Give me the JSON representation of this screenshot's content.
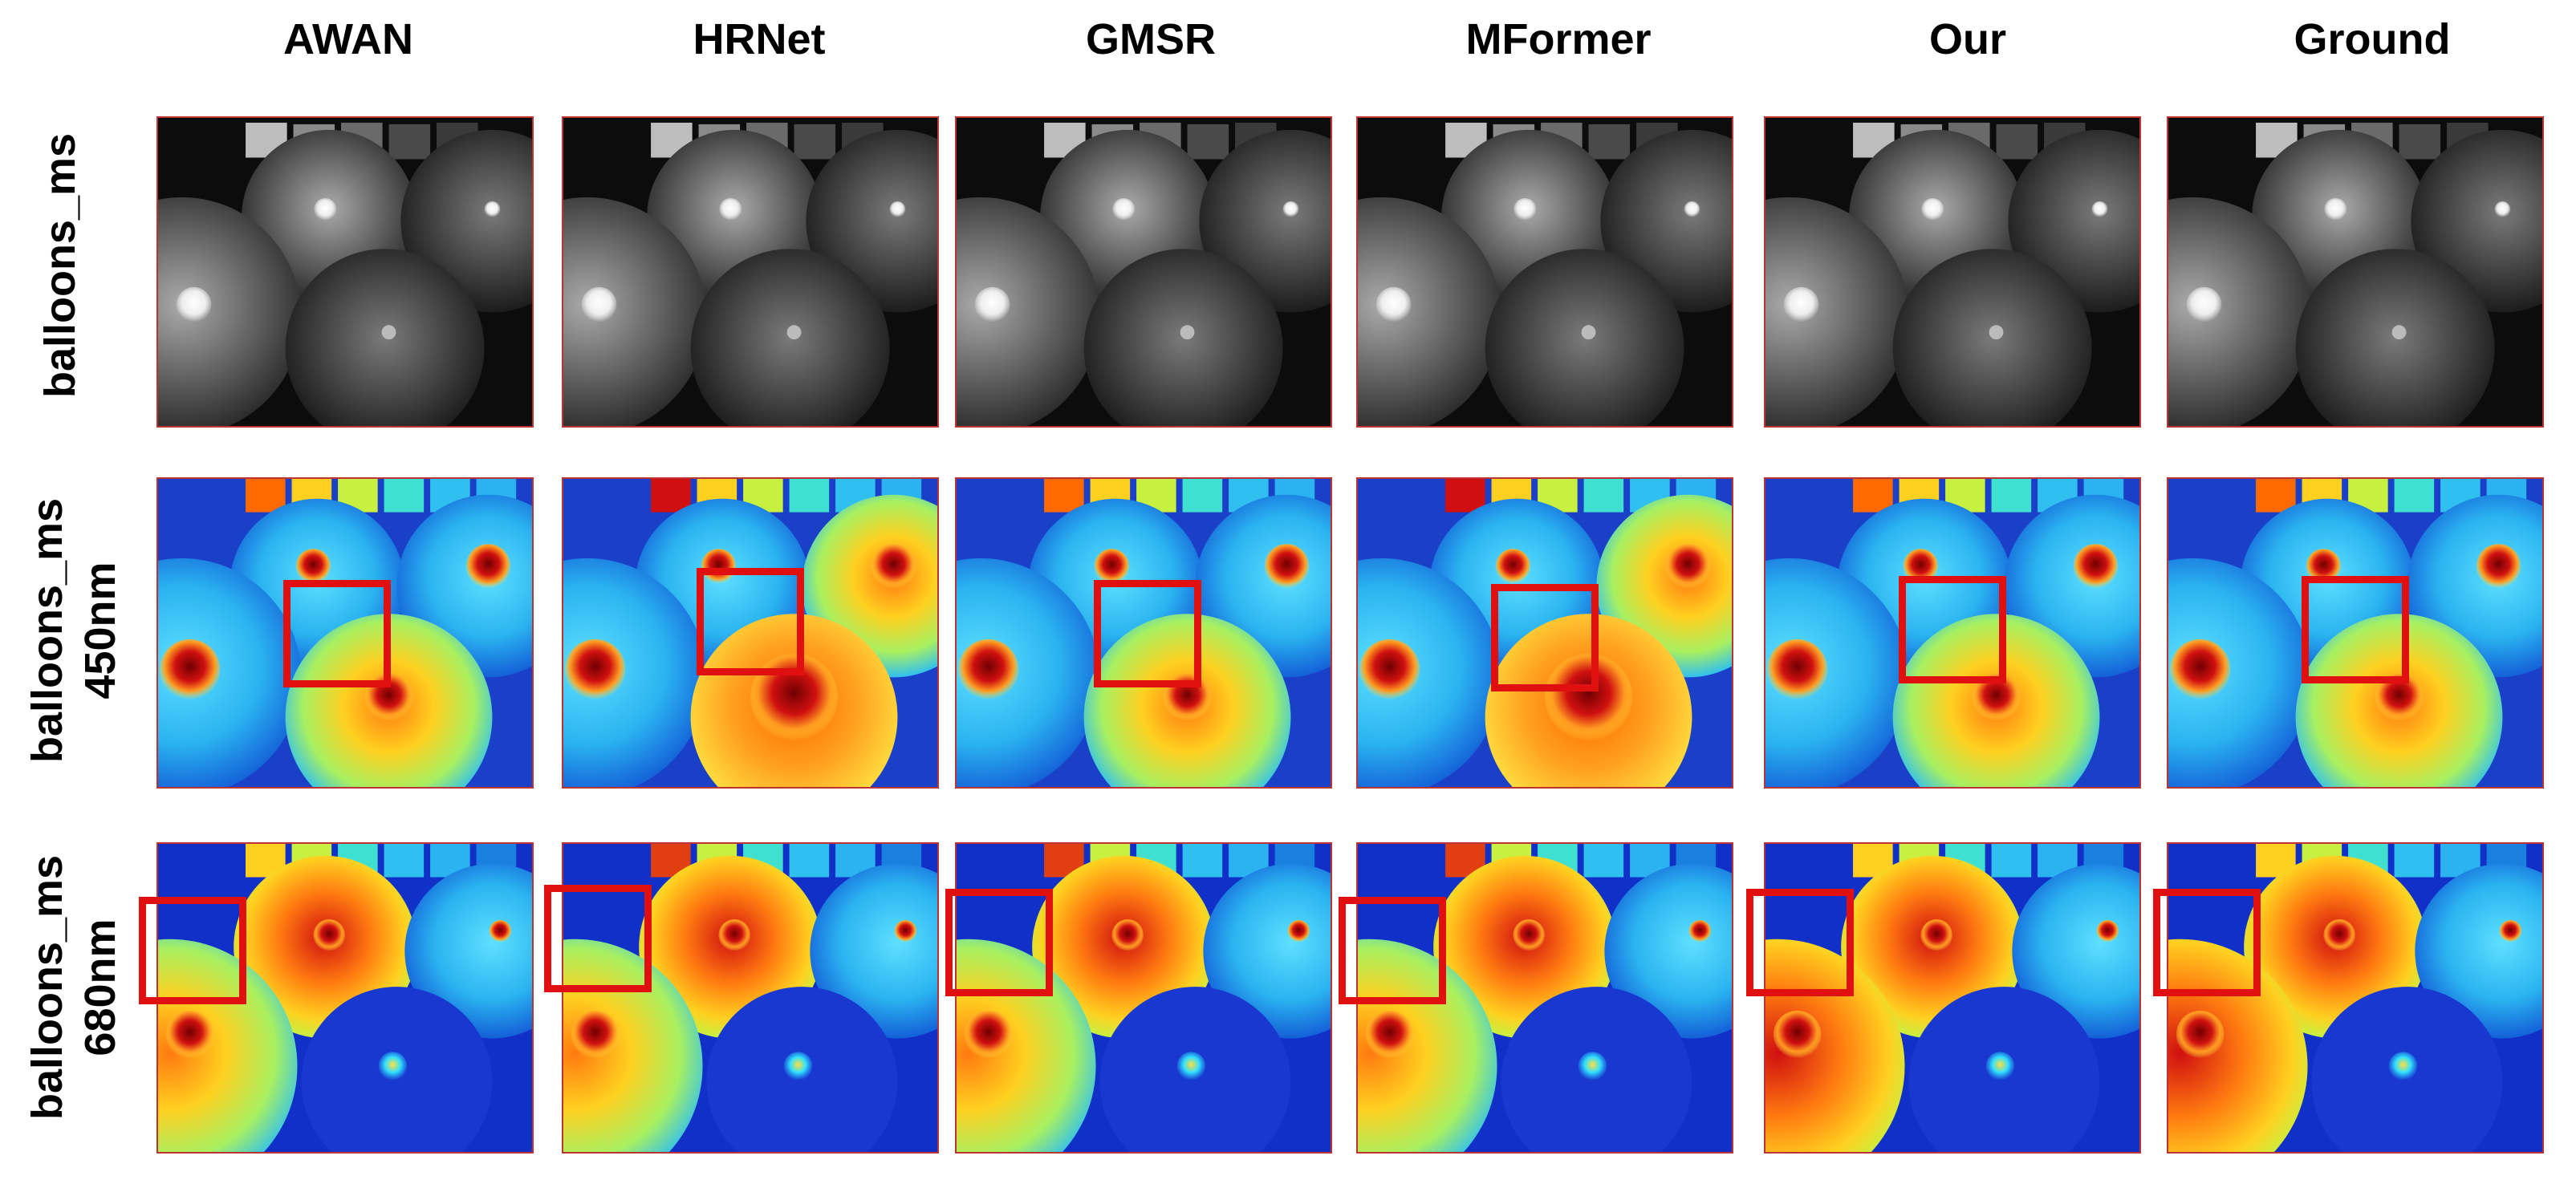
{
  "columns": [
    "AWAN",
    "HRNet",
    "GMSR",
    "MFormer",
    "Our",
    "Ground"
  ],
  "rows": [
    {
      "label_line1": "balloons_ms",
      "label_line2": "",
      "mode": "gray"
    },
    {
      "label_line1": "balloons_ms",
      "label_line2": "450nm",
      "mode": "jet450"
    },
    {
      "label_line1": "balloons_ms",
      "label_line2": "680nm",
      "mode": "jet680"
    }
  ],
  "colors": {
    "zoom_box": "#e01010",
    "panel_border": "#b33333"
  }
}
